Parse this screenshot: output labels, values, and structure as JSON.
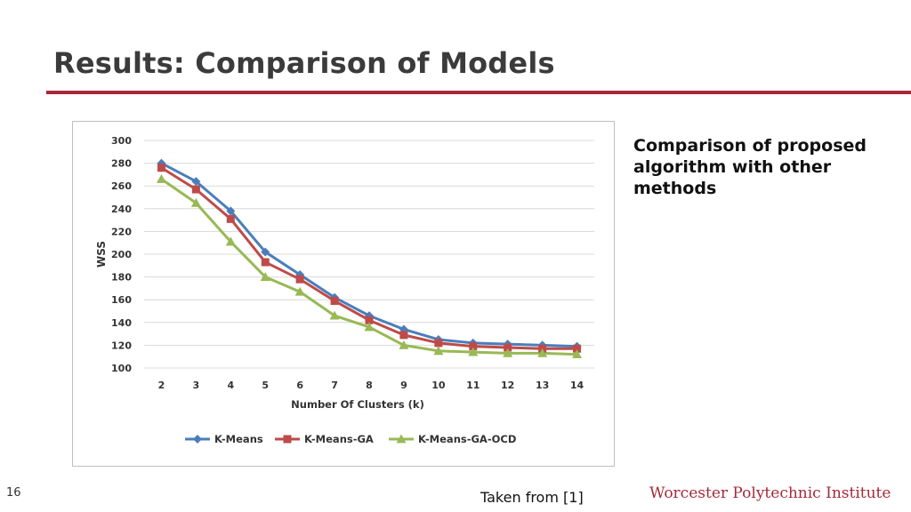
{
  "slide": {
    "title": "Results: Comparison of Models",
    "caption": "Comparison of proposed algorithm with other methods",
    "source": "Taken from [1]",
    "institution": "Worcester Polytechnic Institute",
    "page_number": "16"
  },
  "colors": {
    "accent": "#a5293a",
    "k_means": "#4a7ebb",
    "k_means_ga": "#be4b48",
    "k_means_ga_ocd": "#98b954",
    "grid": "#d9d9d9"
  },
  "chart_data": {
    "type": "line",
    "title": "",
    "xlabel": "Number Of Clusters (k)",
    "ylabel": "WSS",
    "x": [
      2,
      3,
      4,
      5,
      6,
      7,
      8,
      9,
      10,
      11,
      12,
      13,
      14
    ],
    "ylim": [
      100,
      300
    ],
    "yticks": [
      100,
      120,
      140,
      160,
      180,
      200,
      220,
      240,
      260,
      280,
      300
    ],
    "grid": true,
    "legend_position": "bottom",
    "series": [
      {
        "name": "K-Means",
        "marker": "diamond",
        "color": "#4a7ebb",
        "values": [
          280,
          264,
          238,
          202,
          182,
          162,
          146,
          134,
          125,
          122,
          121,
          120,
          119
        ]
      },
      {
        "name": "K-Means-GA",
        "marker": "square",
        "color": "#be4b48",
        "values": [
          276,
          257,
          231,
          193,
          178,
          159,
          142,
          129,
          122,
          119,
          118,
          117,
          117
        ]
      },
      {
        "name": "K-Means-GA-OCD",
        "marker": "triangle",
        "color": "#98b954",
        "values": [
          266,
          245,
          211,
          180,
          167,
          146,
          136,
          120,
          115,
          114,
          113,
          113,
          112
        ]
      }
    ]
  }
}
